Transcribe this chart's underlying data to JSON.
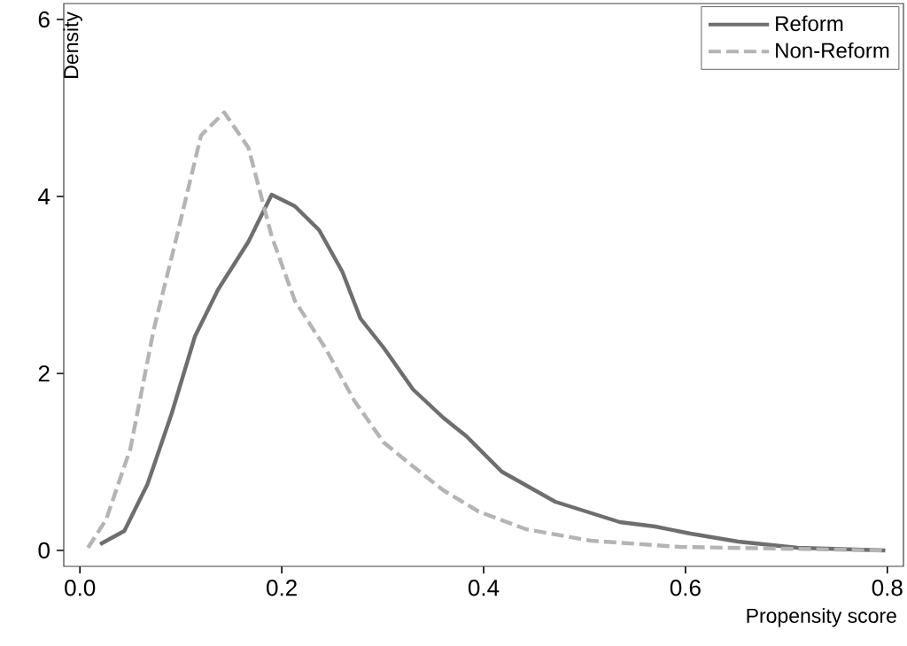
{
  "chart_data": {
    "type": "line",
    "xlabel": "Propensity score",
    "ylabel": "Density",
    "xlim": [
      -0.016,
      0.816
    ],
    "ylim": [
      -0.18,
      6.18
    ],
    "xticks": [
      {
        "value": 0,
        "label": "0.0"
      },
      0.2,
      0.4,
      0.6,
      0.8
    ],
    "yticks": [
      0,
      2,
      4,
      6
    ],
    "grid": false,
    "legend": "top right",
    "marker": "none",
    "series": [
      {
        "name": "Reform",
        "color": "#6e6e6e",
        "line_style": "solid",
        "x": [
          0.02,
          0.044,
          0.067,
          0.091,
          0.114,
          0.137,
          0.167,
          0.19,
          0.213,
          0.237,
          0.26,
          0.278,
          0.301,
          0.33,
          0.36,
          0.383,
          0.418,
          0.471,
          0.535,
          0.57,
          0.605,
          0.652,
          0.711,
          0.798
        ],
        "values": [
          0.07,
          0.22,
          0.75,
          1.55,
          2.42,
          2.95,
          3.49,
          4.02,
          3.89,
          3.62,
          3.15,
          2.62,
          2.29,
          1.82,
          1.5,
          1.29,
          0.89,
          0.55,
          0.32,
          0.27,
          0.19,
          0.1,
          0.03,
          0.0
        ]
      },
      {
        "name": "Non-Reform",
        "color": "#b4b4b4",
        "line_style": "dashed",
        "x": [
          0.008,
          0.026,
          0.05,
          0.073,
          0.096,
          0.12,
          0.143,
          0.167,
          0.19,
          0.213,
          0.243,
          0.272,
          0.301,
          0.33,
          0.36,
          0.395,
          0.442,
          0.506,
          0.594,
          0.798
        ],
        "values": [
          0.03,
          0.35,
          1.15,
          2.49,
          3.55,
          4.69,
          4.95,
          4.55,
          3.55,
          2.82,
          2.29,
          1.69,
          1.22,
          0.95,
          0.68,
          0.44,
          0.24,
          0.11,
          0.04,
          0.0
        ]
      }
    ]
  }
}
